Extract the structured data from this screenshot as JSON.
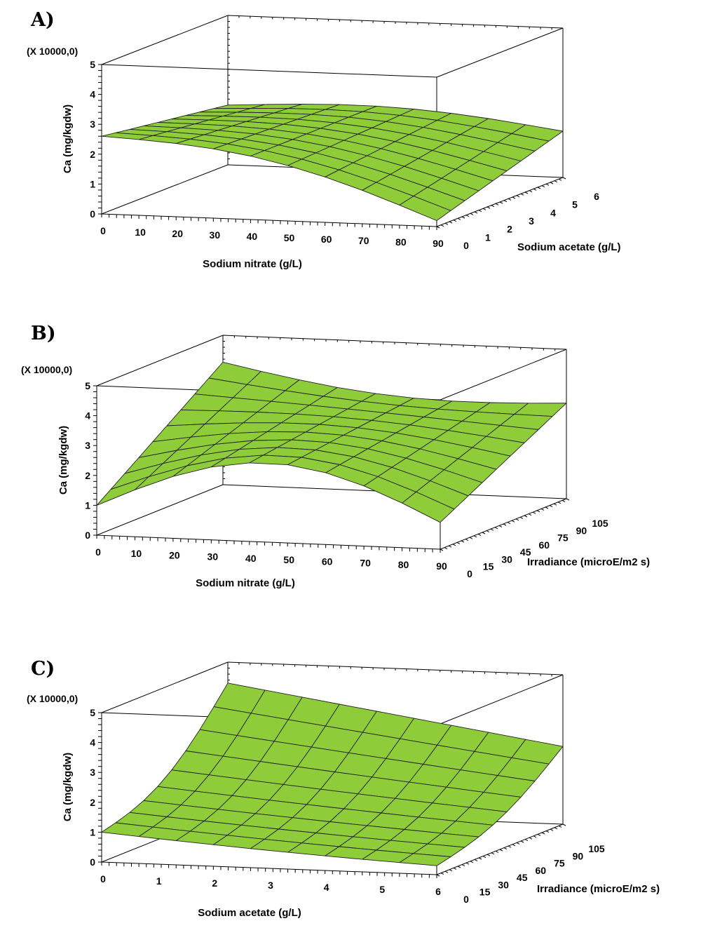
{
  "panels": [
    {
      "letter": "A)",
      "chart_data": {
        "type": "surface",
        "xlabel": "Sodium nitrate (g/L)",
        "ylabel": "Sodium acetate (g/L)",
        "zlabel": "Ca (mg/kgdw)",
        "z_multiplier": "(X 10000,0)",
        "xlim": [
          0,
          90
        ],
        "ylim": [
          0,
          6
        ],
        "zlim": [
          0,
          5
        ],
        "x_ticks": [
          "0",
          "10",
          "20",
          "30",
          "40",
          "50",
          "60",
          "70",
          "80",
          "90"
        ],
        "y_ticks": [
          "0",
          "1",
          "2",
          "3",
          "4",
          "5",
          "6"
        ],
        "z_ticks": [
          "0",
          "1",
          "2",
          "3",
          "4",
          "5"
        ],
        "corners": {
          "x0_y0": 2.6,
          "x90_y0": 0.2,
          "x0_y6": 2.0,
          "x90_y6": 1.3
        }
      }
    },
    {
      "letter": "B)",
      "chart_data": {
        "type": "surface",
        "xlabel": "Sodium nitrate (g/L)",
        "ylabel": "Irradiance (microE/m2 s)",
        "zlabel": "Ca (mg/kgdw)",
        "z_multiplier": "(X 10000,0)",
        "xlim": [
          0,
          90
        ],
        "ylim": [
          0,
          105
        ],
        "zlim": [
          0,
          5
        ],
        "x_ticks": [
          "0",
          "10",
          "20",
          "30",
          "40",
          "50",
          "60",
          "70",
          "80",
          "90"
        ],
        "y_ticks": [
          "0",
          "15",
          "30",
          "45",
          "60",
          "75",
          "90",
          "105"
        ],
        "z_ticks": [
          "0",
          "1",
          "2",
          "3",
          "4",
          "5"
        ],
        "corners": {
          "x0_y0": 1.0,
          "x90_y0": 0.9,
          "x0_y105": 4.1,
          "x90_y105": 3.2,
          "center": 2.4
        }
      }
    },
    {
      "letter": "C)",
      "chart_data": {
        "type": "surface",
        "xlabel": "Sodium acetate (g/L)",
        "ylabel": "Irradiance (microE/m2 s)",
        "zlabel": "Ca (mg/kgdw)",
        "z_multiplier": "(X 10000,0)",
        "xlim": [
          0,
          6
        ],
        "ylim": [
          0,
          105
        ],
        "zlim": [
          0,
          5
        ],
        "x_ticks": [
          "0",
          "1",
          "2",
          "3",
          "4",
          "5",
          "6"
        ],
        "y_ticks": [
          "0",
          "15",
          "30",
          "45",
          "60",
          "75",
          "90",
          "105"
        ],
        "z_ticks": [
          "0",
          "1",
          "2",
          "3",
          "4",
          "5"
        ],
        "corners": {
          "x0_y0": 1.0,
          "x6_y0": 0.1,
          "x0_y105": 4.3,
          "x6_y105": 2.6
        }
      }
    }
  ],
  "colors": {
    "surface": "#8fcc3a",
    "mesh": "#222222",
    "box": "#000000"
  }
}
